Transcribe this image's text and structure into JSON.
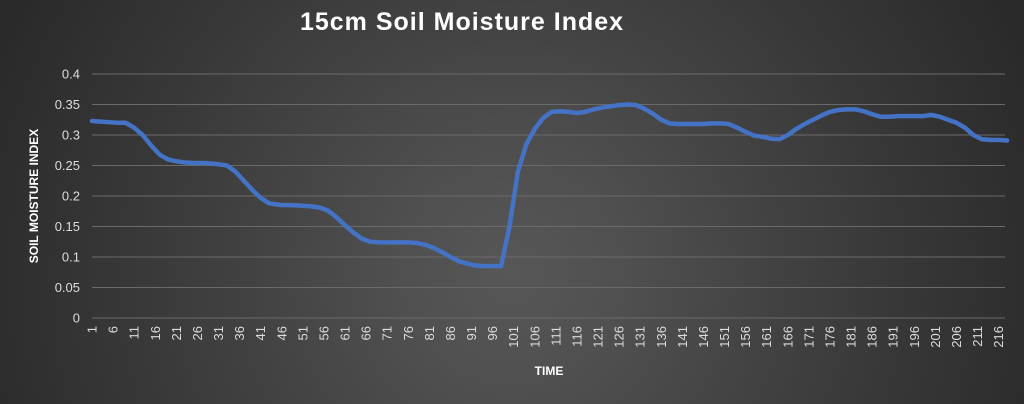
{
  "chart_data": {
    "type": "line",
    "title": "15cm Soil Moisture Index",
    "xlabel": "TIME",
    "ylabel": "SOIL MOISTURE INDEX",
    "ylim": [
      0,
      0.4
    ],
    "yticks": [
      "0",
      "0.05",
      "0.1",
      "0.15",
      "0.2",
      "0.25",
      "0.3",
      "0.35",
      "0.4"
    ],
    "xticks": [
      "1",
      "6",
      "11",
      "16",
      "21",
      "26",
      "31",
      "36",
      "41",
      "46",
      "51",
      "56",
      "61",
      "66",
      "71",
      "76",
      "81",
      "86",
      "91",
      "96",
      "101",
      "106",
      "111",
      "116",
      "121",
      "126",
      "131",
      "136",
      "141",
      "146",
      "151",
      "156",
      "161",
      "166",
      "171",
      "176",
      "181",
      "186",
      "191",
      "196",
      "201",
      "206",
      "211",
      "216"
    ],
    "grid": true,
    "line_color": "#4472c4",
    "x": [
      1,
      3,
      5,
      7,
      9,
      11,
      13,
      15,
      17,
      19,
      21,
      23,
      26,
      28,
      31,
      33,
      35,
      37,
      39,
      41,
      43,
      46,
      48,
      51,
      53,
      55,
      57,
      59,
      61,
      63,
      65,
      67,
      69,
      71,
      74,
      76,
      78,
      80,
      82,
      84,
      86,
      88,
      90,
      92,
      94,
      96,
      98,
      100,
      102,
      104,
      106,
      108,
      110,
      112,
      114,
      116,
      118,
      120,
      122,
      124,
      126,
      128,
      130,
      132,
      134,
      136,
      138,
      140,
      142,
      144,
      146,
      148,
      150,
      152,
      154,
      156,
      158,
      160,
      162,
      164,
      166,
      168,
      170,
      172,
      174,
      176,
      178,
      180,
      182,
      184,
      186,
      188,
      190,
      192,
      194,
      196,
      198,
      200,
      202,
      204,
      206,
      208,
      210,
      212,
      214,
      216,
      218
    ],
    "series": [
      {
        "values": [
          0.323,
          0.322,
          0.321,
          0.32,
          0.32,
          0.312,
          0.3,
          0.283,
          0.268,
          0.26,
          0.257,
          0.255,
          0.254,
          0.254,
          0.252,
          0.25,
          0.24,
          0.225,
          0.21,
          0.197,
          0.188,
          0.185,
          0.185,
          0.184,
          0.183,
          0.181,
          0.176,
          0.165,
          0.152,
          0.14,
          0.13,
          0.125,
          0.124,
          0.124,
          0.124,
          0.124,
          0.123,
          0.12,
          0.115,
          0.108,
          0.1,
          0.093,
          0.089,
          0.086,
          0.085,
          0.085,
          0.085,
          0.15,
          0.24,
          0.285,
          0.31,
          0.328,
          0.338,
          0.339,
          0.338,
          0.336,
          0.338,
          0.342,
          0.345,
          0.347,
          0.349,
          0.35,
          0.349,
          0.343,
          0.335,
          0.325,
          0.319,
          0.318,
          0.318,
          0.318,
          0.318,
          0.319,
          0.319,
          0.318,
          0.312,
          0.305,
          0.299,
          0.297,
          0.294,
          0.293,
          0.3,
          0.31,
          0.318,
          0.325,
          0.332,
          0.338,
          0.341,
          0.342,
          0.342,
          0.339,
          0.334,
          0.33,
          0.33,
          0.331,
          0.331,
          0.331,
          0.331,
          0.333,
          0.33,
          0.325,
          0.32,
          0.312,
          0.3,
          0.293,
          0.292,
          0.292,
          0.291
        ]
      }
    ]
  }
}
